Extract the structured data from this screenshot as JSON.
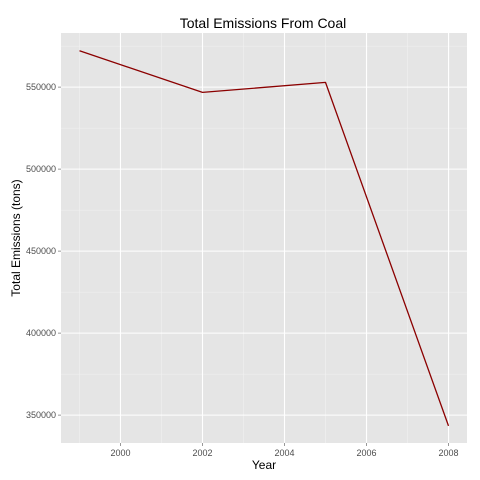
{
  "chart_data": {
    "type": "line",
    "title": "Total Emissions From Coal",
    "xlabel": "Year",
    "ylabel": "Total Emissions (tons)",
    "x": [
      1999,
      2002,
      2005,
      2008
    ],
    "series": [
      {
        "values": [
          572126,
          546789,
          552881,
          343432
        ]
      }
    ],
    "xlim": [
      1998.55,
      2008.45
    ],
    "ylim": [
      333000,
      583000
    ],
    "x_ticks": [
      2000,
      2002,
      2004,
      2006,
      2008
    ],
    "x_tick_labels": [
      "2000",
      "2002",
      "2004",
      "2006",
      "2008"
    ],
    "y_ticks": [
      350000,
      400000,
      450000,
      500000,
      550000
    ],
    "y_tick_labels": [
      "350000",
      "400000",
      "450000",
      "500000",
      "550000"
    ],
    "grid": true,
    "colors": {
      "panel_background": "#e5e5e5",
      "grid_major": "#ffffff",
      "grid_minor": "#f2f2f2",
      "line": "#8b0000"
    }
  }
}
